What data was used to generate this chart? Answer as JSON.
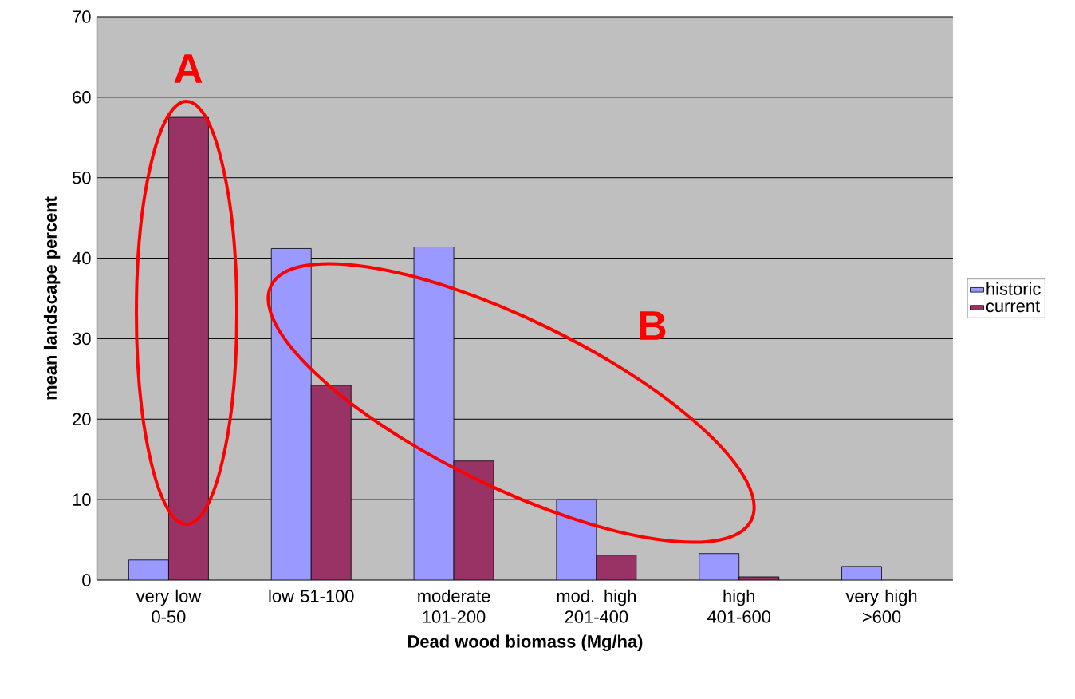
{
  "chart_data": {
    "type": "bar",
    "xlabel": "Dead wood biomass (Mg/ha)",
    "ylabel": "mean landscape percent",
    "categories": [
      "very low 0-50",
      "low 51-100",
      "moderate 101-200",
      "mod. high 201-400",
      "high 401-600",
      "very high >600"
    ],
    "series": [
      {
        "name": "historic",
        "color": "#9999ff",
        "values": [
          2.5,
          41.2,
          41.4,
          10.0,
          3.3,
          1.7
        ]
      },
      {
        "name": "current",
        "color": "#993366",
        "values": [
          57.5,
          24.2,
          14.8,
          3.1,
          0.4,
          null
        ]
      }
    ],
    "ylim": [
      0,
      70
    ],
    "yticks": [
      0,
      10,
      20,
      30,
      40,
      50,
      60,
      70
    ],
    "grid": "y",
    "legend": "right",
    "annotations": [
      "A",
      "B"
    ]
  }
}
